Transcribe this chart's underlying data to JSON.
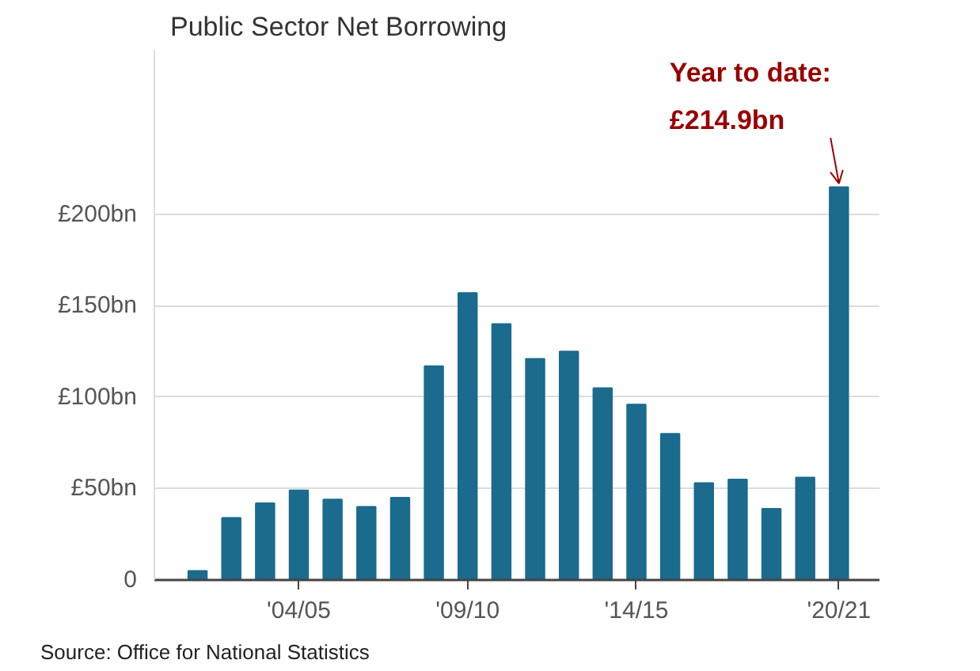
{
  "chart_data": {
    "type": "bar",
    "title": "Public Sector Net Borrowing",
    "categories": [
      null,
      null,
      null,
      "'04/05",
      null,
      null,
      null,
      null,
      "'09/10",
      null,
      null,
      null,
      null,
      "'14/15",
      null,
      null,
      null,
      null,
      null,
      "'20/21"
    ],
    "values": [
      5,
      34,
      42,
      49,
      44,
      40,
      45,
      117,
      157,
      140,
      121,
      125,
      105,
      96,
      80,
      53,
      55,
      39,
      56,
      214.9
    ],
    "color": "#1a6b8e",
    "ylim": [
      0,
      290
    ],
    "yticks": [
      0,
      {
        "value": 50,
        "label": "£50bn"
      },
      {
        "value": 100,
        "label": "£100bn"
      },
      {
        "value": 150,
        "label": "£150bn"
      },
      {
        "value": 200,
        "label": "£200bn"
      }
    ],
    "grid": "y",
    "annotations": [
      {
        "text": "Year to date:\n£214.9bn",
        "x": "'20/21",
        "y": 214.9
      },
      "Source: Office for National Statistics"
    ]
  }
}
